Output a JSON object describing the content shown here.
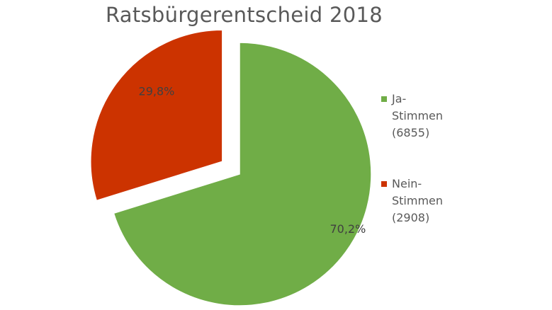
{
  "chart_data": {
    "type": "pie",
    "title": "Ratsbürgerentscheid 2018",
    "legend_position": "right",
    "slices": [
      {
        "legend_lines": [
          "Ja-",
          "Stimmen",
          "(6855)"
        ],
        "count": 6855,
        "percent": 70.2,
        "label": "70,2%",
        "color": "#70ad47",
        "exploded": false
      },
      {
        "legend_lines": [
          "Nein-",
          "Stimmen",
          "(2908)"
        ],
        "count": 2908,
        "percent": 29.8,
        "label": "29,8%",
        "color": "#cc3300",
        "exploded": true
      }
    ]
  }
}
